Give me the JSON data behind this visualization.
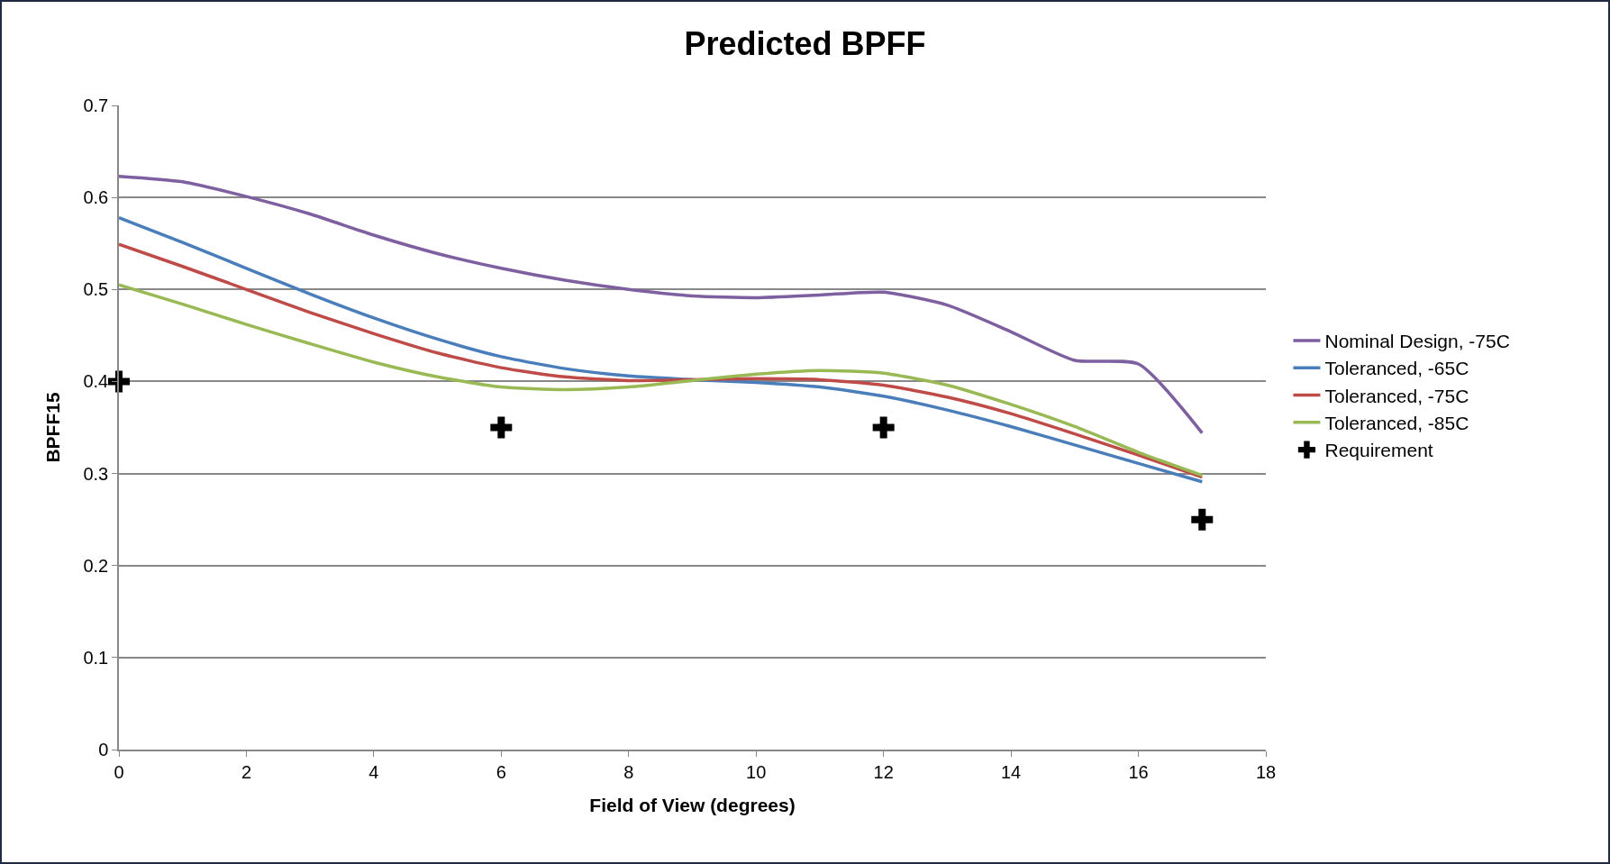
{
  "chart_data": {
    "type": "line",
    "title": "Predicted BPFF",
    "xlabel": "Field of View (degrees)",
    "ylabel": "BPFF15",
    "xlim": [
      0,
      18
    ],
    "xticks": [
      0,
      2,
      4,
      6,
      8,
      10,
      12,
      14,
      16,
      18
    ],
    "ylim": [
      0,
      0.7
    ],
    "yticks": [
      0,
      0.1,
      0.2,
      0.3,
      0.4,
      0.5,
      0.6,
      0.7
    ],
    "grid": "y",
    "legend": "right",
    "line_style": "solid",
    "x": [
      0,
      1,
      2,
      3,
      4,
      5,
      6,
      7,
      8,
      9,
      10,
      11,
      12,
      13,
      14,
      15,
      16,
      17
    ],
    "series": [
      {
        "name": "Nominal Design, -75C",
        "color": "#7e5fa0",
        "marker": "none",
        "values": [
          0.623,
          0.617,
          0.601,
          0.582,
          0.559,
          0.539,
          0.523,
          0.51,
          0.5,
          0.493,
          0.491,
          0.494,
          0.497,
          0.483,
          0.454,
          0.423,
          0.419,
          0.344
        ]
      },
      {
        "name": "Toleranced, -65C",
        "color": "#4a7ebb",
        "marker": "none",
        "values": [
          0.578,
          0.551,
          0.523,
          0.495,
          0.469,
          0.446,
          0.427,
          0.414,
          0.406,
          0.402,
          0.399,
          0.394,
          0.384,
          0.369,
          0.351,
          0.331,
          0.311,
          0.291
        ]
      },
      {
        "name": "Toleranced, -75C",
        "color": "#be4b48",
        "marker": "none",
        "values": [
          0.549,
          0.525,
          0.5,
          0.475,
          0.452,
          0.431,
          0.415,
          0.405,
          0.401,
          0.402,
          0.403,
          0.402,
          0.396,
          0.383,
          0.365,
          0.343,
          0.32,
          0.296
        ]
      },
      {
        "name": "Toleranced, -85C",
        "color": "#98b954",
        "marker": "none",
        "values": [
          0.505,
          0.484,
          0.462,
          0.441,
          0.421,
          0.405,
          0.394,
          0.391,
          0.394,
          0.401,
          0.408,
          0.412,
          0.409,
          0.396,
          0.375,
          0.351,
          0.323,
          0.298
        ]
      },
      {
        "name": "Requirement",
        "type": "scatter",
        "color": "#000000",
        "marker": "cross",
        "x": [
          0,
          6,
          12,
          17
        ],
        "values": [
          0.4,
          0.35,
          0.35,
          0.25
        ]
      }
    ]
  }
}
